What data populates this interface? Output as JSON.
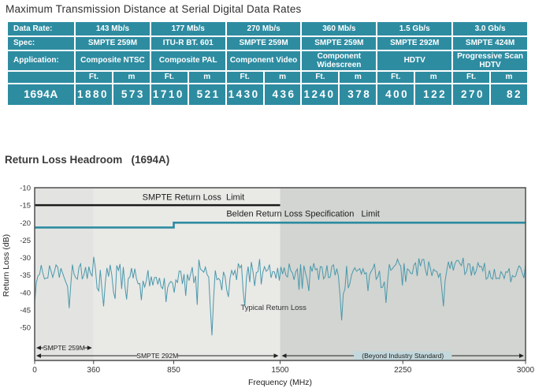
{
  "page_title": "Maximum Transmission Distance at Serial Digital Data Rates",
  "chart_title": "Return Loss Headroom   (1694A)",
  "colors": {
    "table_teal": "#2E8CA1",
    "trace_teal": "#4A98AC",
    "belden_line_teal": "#2E8CA1",
    "smpte_line_black": "#1A1A1A",
    "plot_bg_left": "#E3E4E1",
    "plot_bg_mid": "#E9E9E6",
    "plot_bg_right": "#D2D5D1",
    "beyond_highlight": "#C3D8DC",
    "frame_gray": "#4E4E4E",
    "text_dark": "#2E2E2E"
  },
  "table": {
    "row_labels": {
      "data_rate": "Data Rate:",
      "spec": "Spec:",
      "application": "Application:",
      "product": "1694A"
    },
    "data_rate": [
      "143 Mb/s",
      "177 Mb/s",
      "270 Mb/s",
      "360 Mb/s",
      "1.5 Gb/s",
      "3.0 Gb/s"
    ],
    "spec": [
      "SMPTE 259M",
      "ITU-R BT. 601",
      "SMPTE 259M",
      "SMPTE 259M",
      "SMPTE 292M",
      "SMPTE 424M"
    ],
    "application": [
      "Composite NTSC",
      "Composite PAL",
      "Component Video",
      "Component Widescreen",
      "HDTV",
      "Progressive Scan HDTV"
    ],
    "units": [
      "Ft.",
      "m"
    ],
    "values": [
      [
        "1880",
        "573"
      ],
      [
        "1710",
        "521"
      ],
      [
        "1430",
        "436"
      ],
      [
        "1240",
        "378"
      ],
      [
        "400",
        "122"
      ],
      [
        "270",
        "82"
      ]
    ]
  },
  "chart_data": {
    "type": "line",
    "title": "Return Loss Headroom (1694A)",
    "xlabel": "Frequency (MHz)",
    "ylabel": "Return Loss (dB)",
    "xlim": [
      0,
      3000
    ],
    "ylim_labeled": [
      -50,
      -10
    ],
    "y_bottom": -59.5,
    "x_ticks": [
      0,
      360,
      850,
      1500,
      2250,
      3000
    ],
    "y_ticks": [
      -10,
      -15,
      -20,
      -25,
      -30,
      -35,
      -40,
      -45,
      -50
    ],
    "grid": false,
    "legend_position": "none",
    "background_bands": [
      {
        "from_mhz": 0,
        "to_mhz": 360,
        "color": "#E3E4E1"
      },
      {
        "from_mhz": 360,
        "to_mhz": 1500,
        "color": "#E9E9E6"
      },
      {
        "from_mhz": 1500,
        "to_mhz": 3000,
        "color": "#D2D5D1"
      }
    ],
    "smpte_limit": {
      "label": "SMPTE Return Loss  Limit",
      "value_db": -15,
      "x_from_mhz": 0,
      "x_to_mhz": 1500,
      "color": "#1A1A1A",
      "label_pos": [
        970,
        -13.5
      ]
    },
    "belden_limit": {
      "label": "Belden Return Loss Specification   Limit",
      "step_points_mhz_db": [
        [
          0,
          -21.4
        ],
        [
          850,
          -21.4
        ],
        [
          850,
          -20
        ],
        [
          3000,
          -20
        ]
      ],
      "color": "#2E8CA1",
      "label_pos": [
        1640,
        -18.3
      ]
    },
    "typical_return_loss": {
      "label": "Typical Return Loss",
      "label_pos": [
        1460,
        -45
      ],
      "color": "#4A98AC",
      "mean_db": -34.8,
      "mean_right_db": -33.6,
      "jitter_db": 2.6,
      "seed": 9,
      "n_points": 300,
      "envelope_db": [
        -47,
        -28
      ],
      "deep_spikes_mhz_db": [
        [
          210,
          -44.5
        ],
        [
          420,
          -44
        ],
        [
          560,
          -42
        ],
        [
          1080,
          -52.3
        ],
        [
          1280,
          -44
        ],
        [
          1875,
          -48
        ],
        [
          2150,
          -43
        ],
        [
          2500,
          -44
        ]
      ]
    },
    "range_annotations": [
      {
        "label": "SMPTE 259M",
        "x_from_mhz": 0,
        "x_to_mhz": 360,
        "row": 0,
        "highlighted": false
      },
      {
        "label": "SMPTE 292M",
        "x_from_mhz": 0,
        "x_to_mhz": 1500,
        "row": 1,
        "highlighted": false
      },
      {
        "label": "(Beyond Industry Standard)",
        "x_from_mhz": 1500,
        "x_to_mhz": 3000,
        "row": 1,
        "highlighted": true
      }
    ]
  }
}
